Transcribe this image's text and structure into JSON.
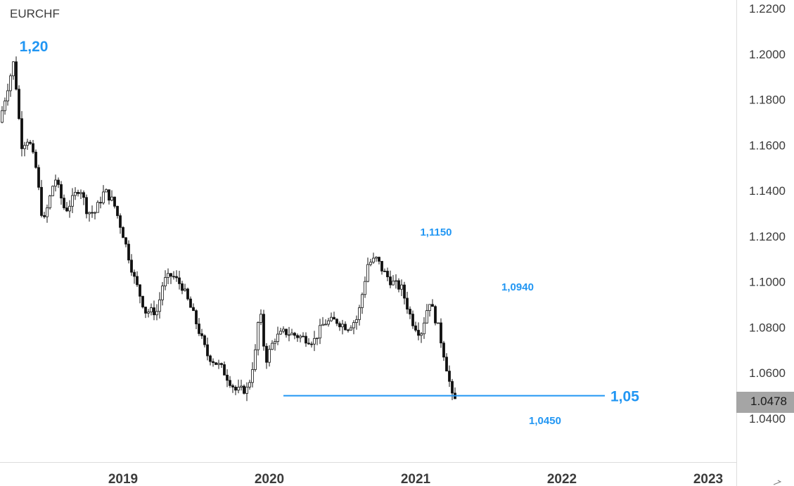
{
  "symbol": "EURCHF",
  "last_price": "1.0478",
  "chart_data": {
    "type": "candlestick",
    "symbol": "EURCHF",
    "ylim": [
      1.032,
      1.2225
    ],
    "y_ticks": [
      "1.0400",
      "1.0600",
      "1.0800",
      "1.1000",
      "1.1200",
      "1.1400",
      "1.1600",
      "1.1800",
      "1.2000",
      "1.2200"
    ],
    "x_ticks": [
      "2019",
      "2020",
      "2021",
      "2022",
      "2023"
    ],
    "grid": false,
    "annotations": [
      {
        "text": "1,20",
        "value": 1.2,
        "color": "#2196f3"
      },
      {
        "text": "1,1150",
        "value": 1.115,
        "color": "#2196f3"
      },
      {
        "text": "1,0940",
        "value": 1.094,
        "color": "#2196f3"
      },
      {
        "text": "1,0450",
        "value": 1.045,
        "color": "#2196f3"
      },
      {
        "text": "1,05",
        "value": 1.05,
        "color": "#2196f3"
      }
    ],
    "support_line": {
      "value": 1.05,
      "color": "#2196f3"
    },
    "path": [
      [
        0,
        1.17
      ],
      [
        0.1,
        1.197
      ],
      [
        0.15,
        1.16
      ],
      [
        0.2,
        1.163
      ],
      [
        0.25,
        1.15
      ],
      [
        0.3,
        1.125
      ],
      [
        0.38,
        1.146
      ],
      [
        0.45,
        1.131
      ],
      [
        0.5,
        1.136
      ],
      [
        0.55,
        1.142
      ],
      [
        0.6,
        1.131
      ],
      [
        0.65,
        1.13
      ],
      [
        0.72,
        1.14
      ],
      [
        0.78,
        1.135
      ],
      [
        0.85,
        1.12
      ],
      [
        0.92,
        1.102
      ],
      [
        1.0,
        1.087
      ],
      [
        1.08,
        1.087
      ],
      [
        1.12,
        1.1
      ],
      [
        1.18,
        1.103
      ],
      [
        1.25,
        1.098
      ],
      [
        1.33,
        1.085
      ],
      [
        1.42,
        1.068
      ],
      [
        1.52,
        1.062
      ],
      [
        1.62,
        1.052
      ],
      [
        1.7,
        1.053
      ],
      [
        1.75,
        1.069
      ],
      [
        1.78,
        1.089
      ],
      [
        1.82,
        1.065
      ],
      [
        1.88,
        1.075
      ],
      [
        1.95,
        1.078
      ],
      [
        2.05,
        1.076
      ],
      [
        2.15,
        1.074
      ],
      [
        2.22,
        1.082
      ],
      [
        2.3,
        1.083
      ],
      [
        2.38,
        1.08
      ],
      [
        2.45,
        1.084
      ],
      [
        2.52,
        1.108
      ],
      [
        2.58,
        1.11
      ],
      [
        2.62,
        1.105
      ],
      [
        2.68,
        1.1
      ],
      [
        2.75,
        1.097
      ],
      [
        2.82,
        1.083
      ],
      [
        2.88,
        1.077
      ],
      [
        2.94,
        1.092
      ],
      [
        3.0,
        1.08
      ],
      [
        3.05,
        1.065
      ],
      [
        3.08,
        1.055
      ],
      [
        3.1,
        1.048
      ]
    ]
  }
}
